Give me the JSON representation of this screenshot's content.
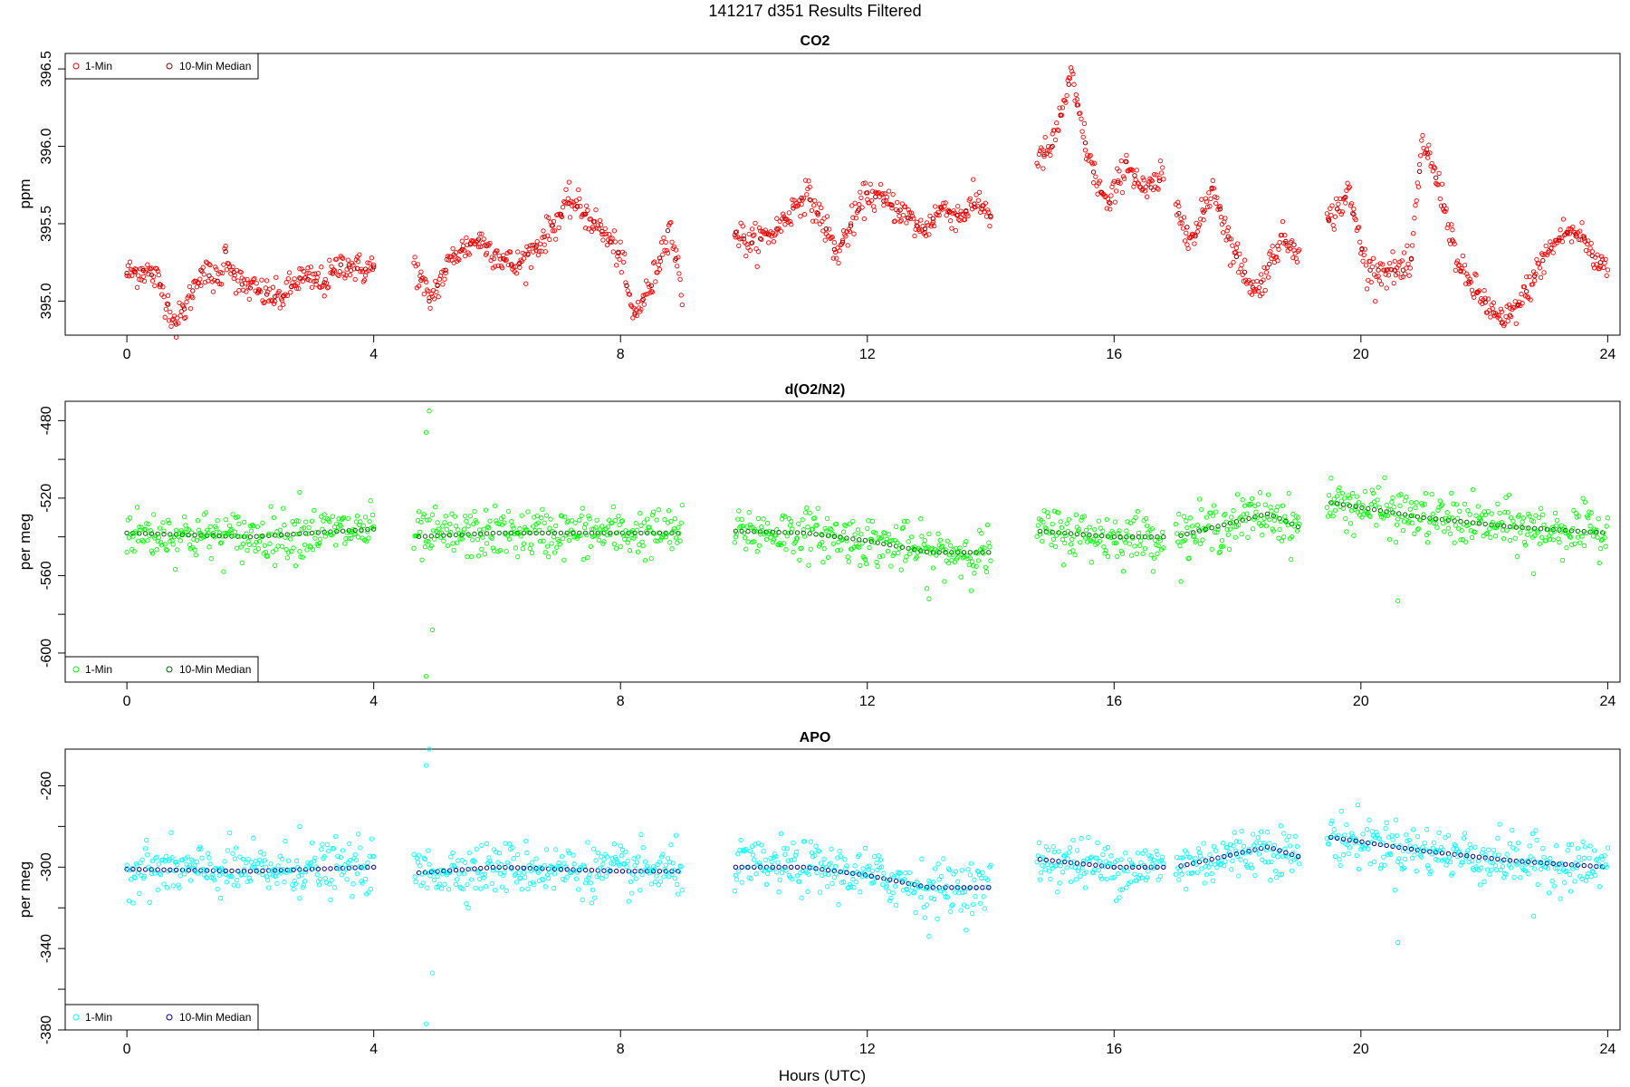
{
  "page_title": "141217   d351   Results Filtered",
  "x_axis_label": "Hours (UTC)",
  "chart_data": [
    {
      "type": "scatter",
      "title": "CO2",
      "ylabel": "ppm",
      "xlabel": "",
      "xlim": [
        -1,
        24.2
      ],
      "ylim": [
        394.78,
        396.6
      ],
      "x_ticks": [
        0,
        4,
        8,
        12,
        16,
        20,
        24
      ],
      "y_ticks": [
        395.0,
        395.5,
        396.0,
        396.5
      ],
      "y_tick_labels": [
        "395.0",
        "395.5",
        "396.0",
        "396.5"
      ],
      "legend": {
        "placement": "top-left",
        "entries": [
          "1-Min",
          "10-Min Median"
        ]
      },
      "colors": {
        "one_min": "#ff0000",
        "median": "#8b0000"
      },
      "series": [
        {
          "name": "1-Min",
          "segments": [
            [
              0.0,
              4.0
            ],
            [
              4.65,
              9.0
            ],
            [
              9.85,
              14.0
            ],
            [
              14.75,
              16.8
            ],
            [
              17.0,
              19.0
            ],
            [
              19.45,
              24.0
            ]
          ],
          "anchors": [
            [
              0.0,
              395.18
            ],
            [
              0.3,
              395.2
            ],
            [
              0.5,
              395.14
            ],
            [
              0.8,
              394.85
            ],
            [
              1.0,
              395.0
            ],
            [
              1.2,
              395.2
            ],
            [
              1.5,
              395.12
            ],
            [
              1.6,
              395.32
            ],
            [
              1.8,
              395.12
            ],
            [
              2.2,
              395.05
            ],
            [
              2.5,
              395.02
            ],
            [
              2.8,
              395.15
            ],
            [
              3.2,
              395.12
            ],
            [
              3.5,
              395.25
            ],
            [
              3.8,
              395.2
            ],
            [
              4.0,
              395.22
            ],
            [
              4.65,
              395.25
            ],
            [
              4.9,
              395.0
            ],
            [
              5.3,
              395.3
            ],
            [
              5.7,
              395.4
            ],
            [
              6.0,
              395.3
            ],
            [
              6.3,
              395.22
            ],
            [
              6.7,
              395.38
            ],
            [
              7.2,
              395.65
            ],
            [
              7.6,
              395.5
            ],
            [
              8.0,
              395.3
            ],
            [
              8.2,
              394.9
            ],
            [
              8.5,
              395.1
            ],
            [
              8.8,
              395.5
            ],
            [
              9.0,
              395.05
            ],
            [
              9.85,
              395.45
            ],
            [
              10.1,
              395.37
            ],
            [
              10.5,
              395.45
            ],
            [
              11.0,
              395.7
            ],
            [
              11.3,
              395.5
            ],
            [
              11.5,
              395.3
            ],
            [
              12.0,
              395.7
            ],
            [
              12.5,
              395.6
            ],
            [
              12.9,
              395.45
            ],
            [
              13.2,
              395.6
            ],
            [
              13.5,
              395.55
            ],
            [
              13.8,
              395.65
            ],
            [
              14.0,
              395.55
            ],
            [
              14.75,
              395.9
            ],
            [
              15.0,
              396.0
            ],
            [
              15.3,
              396.45
            ],
            [
              15.6,
              395.9
            ],
            [
              15.9,
              395.6
            ],
            [
              16.2,
              395.9
            ],
            [
              16.5,
              395.7
            ],
            [
              16.8,
              395.8
            ],
            [
              17.0,
              395.6
            ],
            [
              17.3,
              395.4
            ],
            [
              17.6,
              395.75
            ],
            [
              17.9,
              395.35
            ],
            [
              18.3,
              395.05
            ],
            [
              18.7,
              395.4
            ],
            [
              19.0,
              395.35
            ],
            [
              19.45,
              395.5
            ],
            [
              19.8,
              395.7
            ],
            [
              20.1,
              395.2
            ],
            [
              20.5,
              395.2
            ],
            [
              20.8,
              395.2
            ],
            [
              21.0,
              396.05
            ],
            [
              21.3,
              395.7
            ],
            [
              21.6,
              395.2
            ],
            [
              22.0,
              395.0
            ],
            [
              22.3,
              394.85
            ],
            [
              22.6,
              395.0
            ],
            [
              23.0,
              395.3
            ],
            [
              23.3,
              395.45
            ],
            [
              23.6,
              395.42
            ],
            [
              23.8,
              395.25
            ],
            [
              24.0,
              395.25
            ]
          ]
        },
        {
          "name": "10-Min Median",
          "style": "sparse darker points tracking the 1-Min trace"
        }
      ]
    },
    {
      "type": "scatter",
      "title": "d(O2/N2)",
      "ylabel": "per meg",
      "xlabel": "",
      "xlim": [
        -1,
        24.2
      ],
      "ylim": [
        -615,
        -470
      ],
      "x_ticks": [
        0,
        4,
        8,
        12,
        16,
        20,
        24
      ],
      "y_ticks": [
        -480,
        -520,
        -560,
        -600
      ],
      "y_tick_labels": [
        "-480",
        "-520",
        "-560",
        "-600"
      ],
      "y_minor_ticks": [
        -500,
        -540,
        -580
      ],
      "legend": {
        "placement": "bottom-left",
        "entries": [
          "1-Min",
          "10-Min Median"
        ]
      },
      "colors": {
        "one_min": "#00ff00",
        "median": "#006400"
      },
      "series": [
        {
          "name": "1-Min",
          "segments": [
            [
              0.0,
              4.0
            ],
            [
              4.65,
              9.0
            ],
            [
              9.85,
              14.0
            ],
            [
              14.75,
              16.8
            ],
            [
              17.0,
              19.0
            ],
            [
              19.45,
              24.0
            ]
          ],
          "anchors": [
            [
              0.0,
              -538
            ],
            [
              2.0,
              -540
            ],
            [
              4.0,
              -536
            ],
            [
              4.65,
              -540
            ],
            [
              6.0,
              -538
            ],
            [
              8.0,
              -538
            ],
            [
              9.0,
              -538
            ],
            [
              9.85,
              -537
            ],
            [
              11.0,
              -538
            ],
            [
              12.0,
              -542
            ],
            [
              13.0,
              -548
            ],
            [
              14.0,
              -548
            ],
            [
              14.75,
              -537
            ],
            [
              16.0,
              -540
            ],
            [
              16.8,
              -540
            ],
            [
              17.0,
              -540
            ],
            [
              18.5,
              -528
            ],
            [
              19.0,
              -535
            ],
            [
              19.45,
              -522
            ],
            [
              21.0,
              -530
            ],
            [
              22.5,
              -535
            ],
            [
              24.0,
              -538
            ]
          ],
          "outliers": [
            [
              4.9,
              -475
            ],
            [
              4.85,
              -486
            ],
            [
              4.95,
              -588
            ],
            [
              4.85,
              -612
            ],
            [
              2.8,
              -517
            ],
            [
              13.0,
              -572
            ],
            [
              20.6,
              -573
            ],
            [
              22.8,
              -559
            ]
          ]
        },
        {
          "name": "10-Min Median",
          "style": "sparse darker points tracking the 1-Min trace"
        }
      ]
    },
    {
      "type": "scatter",
      "title": "APO",
      "ylabel": "per meg",
      "xlabel": "Hours (UTC)",
      "xlim": [
        -1,
        24.2
      ],
      "ylim": [
        -380,
        -242
      ],
      "x_ticks": [
        0,
        4,
        8,
        12,
        16,
        20,
        24
      ],
      "y_ticks": [
        -260,
        -300,
        -340,
        -380
      ],
      "y_tick_labels": [
        "-260",
        "-300",
        "-340",
        "-380"
      ],
      "y_minor_ticks": [
        -280,
        -320,
        -360
      ],
      "legend": {
        "placement": "bottom-left",
        "entries": [
          "1-Min",
          "10-Min Median"
        ]
      },
      "colors": {
        "one_min": "#00ffff",
        "median": "#00008b"
      },
      "series": [
        {
          "name": "1-Min",
          "segments": [
            [
              0.0,
              4.0
            ],
            [
              4.65,
              9.0
            ],
            [
              9.85,
              14.0
            ],
            [
              14.75,
              16.8
            ],
            [
              17.0,
              19.0
            ],
            [
              19.45,
              24.0
            ]
          ],
          "anchors": [
            [
              0.0,
              -301
            ],
            [
              2.0,
              -302
            ],
            [
              4.0,
              -300
            ],
            [
              4.65,
              -303
            ],
            [
              6.0,
              -300
            ],
            [
              8.0,
              -302
            ],
            [
              9.0,
              -302
            ],
            [
              9.85,
              -300
            ],
            [
              11.0,
              -300
            ],
            [
              12.0,
              -304
            ],
            [
              13.0,
              -310
            ],
            [
              14.0,
              -310
            ],
            [
              14.75,
              -296
            ],
            [
              16.0,
              -300
            ],
            [
              16.8,
              -300
            ],
            [
              17.0,
              -300
            ],
            [
              18.5,
              -290
            ],
            [
              19.0,
              -295
            ],
            [
              19.45,
              -285
            ],
            [
              21.0,
              -292
            ],
            [
              22.5,
              -297
            ],
            [
              24.0,
              -300
            ]
          ],
          "outliers": [
            [
              4.9,
              -242
            ],
            [
              4.85,
              -250
            ],
            [
              4.95,
              -352
            ],
            [
              4.85,
              -377
            ],
            [
              2.8,
              -280
            ],
            [
              13.0,
              -334
            ],
            [
              20.6,
              -337
            ],
            [
              22.8,
              -324
            ]
          ]
        },
        {
          "name": "10-Min Median",
          "style": "sparse darker points tracking the 1-Min trace"
        }
      ]
    }
  ]
}
